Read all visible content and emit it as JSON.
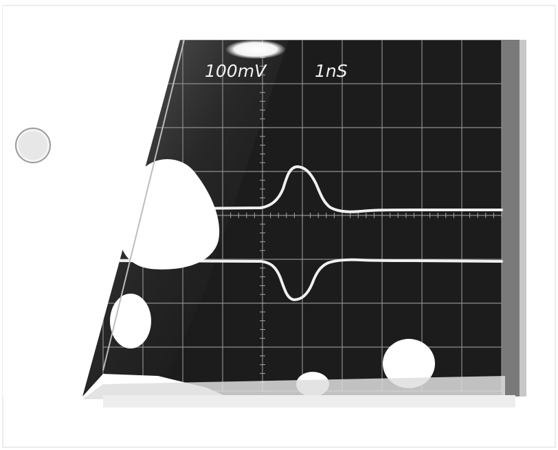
{
  "photo": {
    "subject": "oscilloscope-screen",
    "vertical_scale": "100mV",
    "time_scale": "1nS",
    "colors": {
      "paper": "#ffffff",
      "screen": "#1c1c1c",
      "trace": "#f0f0f0",
      "grid": "#8e8e8e",
      "bezel": "#6e6e6e"
    }
  }
}
